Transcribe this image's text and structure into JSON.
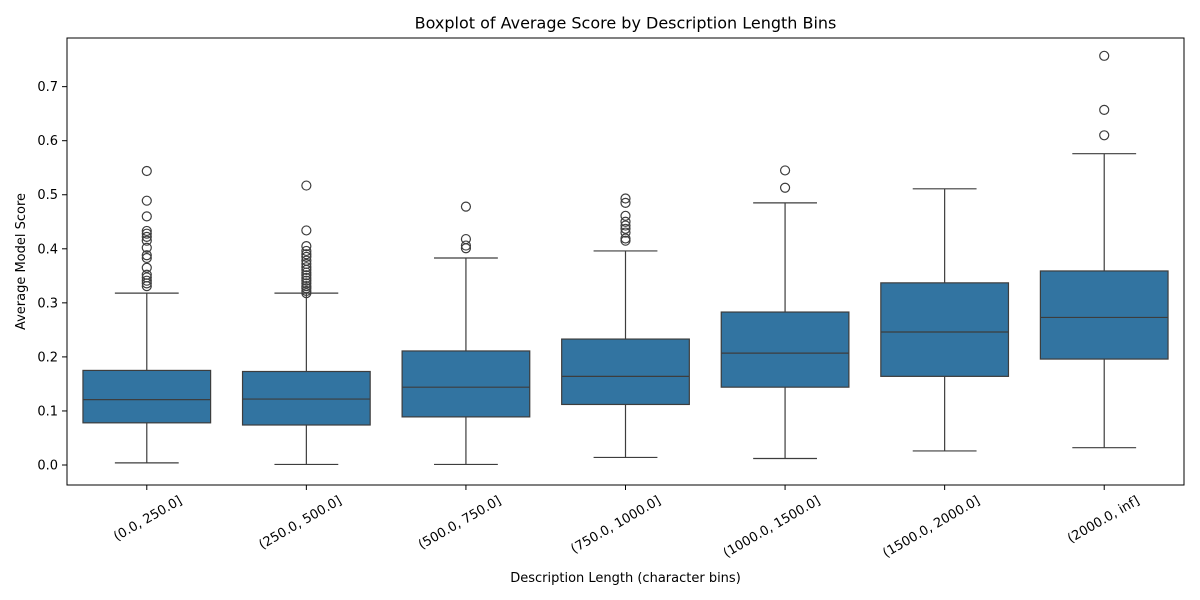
{
  "chart_data": {
    "type": "box",
    "title": "Boxplot of Average Score by Description Length Bins",
    "xlabel": "Description Length (character bins)",
    "ylabel": "Average Model Score",
    "ylim": [
      -0.037,
      0.79
    ],
    "yticks": [
      "0.0",
      "0.1",
      "0.2",
      "0.3",
      "0.4",
      "0.5",
      "0.6",
      "0.7"
    ],
    "grid": false,
    "legend": "none",
    "box_color": "#3274a1",
    "line_color": "#3d3d3d",
    "categories": [
      "(0.0, 250.0]",
      "(250.0, 500.0]",
      "(500.0, 750.0]",
      "(750.0, 1000.0]",
      "(1000.0, 1500.0]",
      "(1500.0, 2000.0]",
      "(2000.0, inf]"
    ],
    "boxes": [
      {
        "min": 0.004,
        "q1": 0.078,
        "median": 0.121,
        "q3": 0.175,
        "max": 0.318,
        "outliers": [
          0.331,
          0.336,
          0.341,
          0.347,
          0.352,
          0.365,
          0.383,
          0.388,
          0.402,
          0.415,
          0.422,
          0.428,
          0.433,
          0.46,
          0.489,
          0.544
        ]
      },
      {
        "min": 0.001,
        "q1": 0.074,
        "median": 0.122,
        "q3": 0.173,
        "max": 0.318,
        "outliers": [
          0.318,
          0.322,
          0.327,
          0.331,
          0.336,
          0.341,
          0.346,
          0.351,
          0.356,
          0.361,
          0.366,
          0.372,
          0.378,
          0.385,
          0.39,
          0.396,
          0.405,
          0.434,
          0.517
        ]
      },
      {
        "min": 0.001,
        "q1": 0.089,
        "median": 0.144,
        "q3": 0.211,
        "max": 0.383,
        "outliers": [
          0.401,
          0.406,
          0.418,
          0.478
        ]
      },
      {
        "min": 0.014,
        "q1": 0.112,
        "median": 0.164,
        "q3": 0.233,
        "max": 0.396,
        "outliers": [
          0.415,
          0.419,
          0.43,
          0.437,
          0.443,
          0.45,
          0.461,
          0.485,
          0.493
        ]
      },
      {
        "min": 0.012,
        "q1": 0.144,
        "median": 0.207,
        "q3": 0.283,
        "max": 0.485,
        "outliers": [
          0.513,
          0.545
        ]
      },
      {
        "min": 0.026,
        "q1": 0.164,
        "median": 0.246,
        "q3": 0.337,
        "max": 0.511,
        "outliers": []
      },
      {
        "min": 0.032,
        "q1": 0.196,
        "median": 0.273,
        "q3": 0.359,
        "max": 0.576,
        "outliers": [
          0.61,
          0.657,
          0.757
        ]
      }
    ]
  }
}
